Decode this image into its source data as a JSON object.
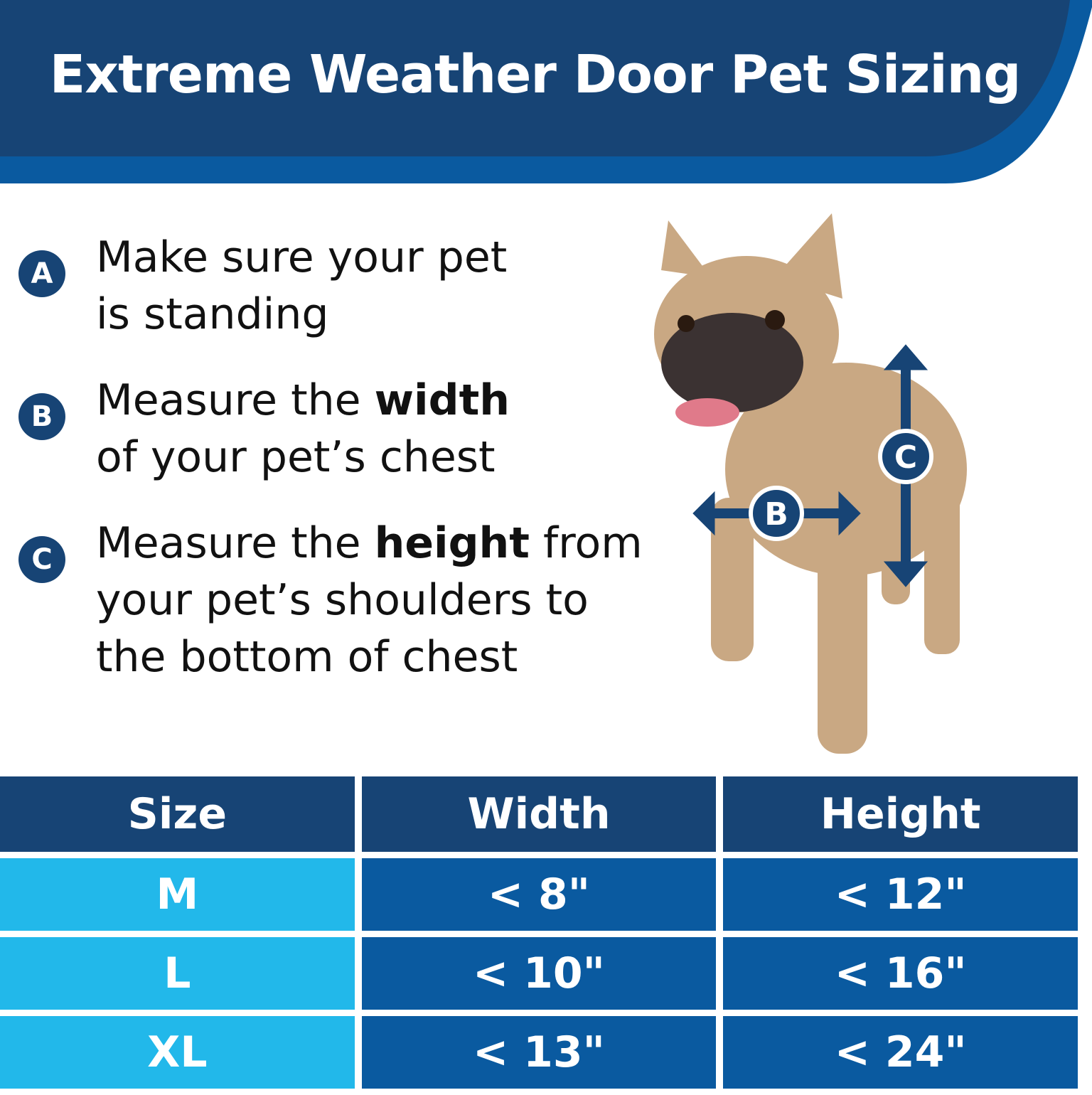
{
  "title": "Extreme Weather Door Pet Sizing",
  "colors": {
    "navy": "#174475",
    "blue": "#0a5aa0",
    "light_blue": "#22b8ea",
    "tan": "#c9a883"
  },
  "steps": [
    {
      "badge": "A",
      "line1": "Make sure your pet",
      "line2": "is standing"
    },
    {
      "badge": "B",
      "pre": "Measure the ",
      "bold": "width",
      "line2": "of your pet’s chest"
    },
    {
      "badge": "C",
      "pre": "Measure the ",
      "bold": "height",
      "post": " from",
      "line2": "your pet’s shoulders to",
      "line3": "the bottom of chest"
    }
  ],
  "dog": {
    "image": "french-bulldog-photo",
    "marker_b": "B",
    "marker_c": "C"
  },
  "table": {
    "headers": [
      "Size",
      "Width",
      "Height"
    ],
    "rows": [
      [
        "M",
        "< 8\"",
        "< 12\""
      ],
      [
        "L",
        "< 10\"",
        "< 16\""
      ],
      [
        "XL",
        "< 13\"",
        "< 24\""
      ]
    ]
  }
}
